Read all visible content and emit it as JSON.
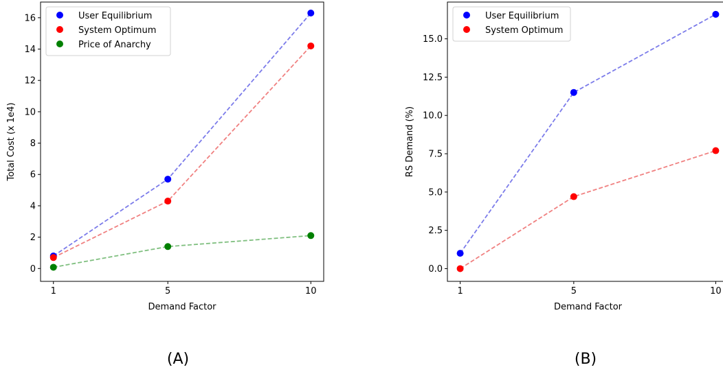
{
  "chart_data": [
    {
      "panel_label": "(A)",
      "type": "line",
      "x": [
        1,
        5,
        10
      ],
      "xlabel": "Demand Factor",
      "ylabel": "Total Cost (x 1e4)",
      "xlim": [
        0.55,
        10.45
      ],
      "ylim": [
        -0.82,
        17.0
      ],
      "xticks": [
        1,
        5,
        10
      ],
      "xtick_labels": [
        "1",
        "5",
        "10"
      ],
      "yticks": [
        0,
        2,
        4,
        6,
        8,
        10,
        12,
        14,
        16
      ],
      "ytick_labels": [
        "0",
        "2",
        "4",
        "6",
        "8",
        "10",
        "12",
        "14",
        "16"
      ],
      "grid": false,
      "legend_position": "top-left",
      "series": [
        {
          "name": "User Equilibrium",
          "values": [
            0.8,
            5.7,
            16.3
          ],
          "color": "#0000ff",
          "line_color": "#7b7bea"
        },
        {
          "name": "System Optimum",
          "values": [
            0.7,
            4.3,
            14.2
          ],
          "color": "#ff0000",
          "line_color": "#f08080"
        },
        {
          "name": "Price of Anarchy",
          "values": [
            0.08,
            1.4,
            2.1
          ],
          "color": "#008000",
          "line_color": "#7fbf7f"
        }
      ]
    },
    {
      "panel_label": "(B)",
      "type": "line",
      "x": [
        1,
        5,
        10
      ],
      "xlabel": "Demand Factor",
      "ylabel": "RS Demand (%)",
      "xlim": [
        0.55,
        10.45
      ],
      "ylim": [
        -0.83,
        17.4
      ],
      "xticks": [
        1,
        5,
        10
      ],
      "xtick_labels": [
        "1",
        "5",
        "10"
      ],
      "yticks": [
        0,
        2.5,
        5,
        7.5,
        10,
        12.5,
        15
      ],
      "ytick_labels": [
        "0.0",
        "2.5",
        "5.0",
        "7.5",
        "10.0",
        "12.5",
        "15.0"
      ],
      "grid": false,
      "legend_position": "top-left",
      "series": [
        {
          "name": "User Equilibrium",
          "values": [
            1.0,
            11.5,
            16.6
          ],
          "color": "#0000ff",
          "line_color": "#7b7bea"
        },
        {
          "name": "System Optimum",
          "values": [
            0.0,
            4.7,
            7.7
          ],
          "color": "#ff0000",
          "line_color": "#f08080"
        }
      ]
    }
  ]
}
